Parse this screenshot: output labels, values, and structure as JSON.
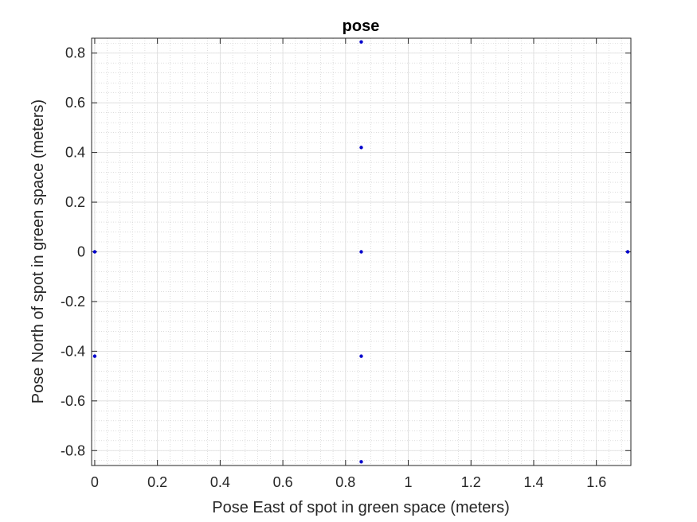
{
  "chart_data": {
    "type": "scatter",
    "title": "pose",
    "xlabel": "Pose East of spot in green space (meters)",
    "ylabel": "Pose North of spot in green space (meters)",
    "xlim": [
      -0.01,
      1.71
    ],
    "ylim": [
      -0.86,
      0.86
    ],
    "xticks": [
      0,
      0.2,
      0.4,
      0.6,
      0.8,
      1,
      1.2,
      1.4,
      1.6
    ],
    "xtick_labels": [
      "0",
      "0.2",
      "0.4",
      "0.6",
      "0.8",
      "1",
      "1.2",
      "1.4",
      "1.6"
    ],
    "yticks": [
      -0.8,
      -0.6,
      -0.4,
      -0.2,
      0,
      0.2,
      0.4,
      0.6,
      0.8
    ],
    "ytick_labels": [
      "-0.8",
      "-0.6",
      "-0.4",
      "-0.2",
      "0",
      "0.2",
      "0.4",
      "0.6",
      "0.8"
    ],
    "grid": true,
    "minor_grid": true,
    "series": [
      {
        "color": "#0000cc",
        "marker": "dot",
        "points": [
          {
            "x": 0.0,
            "y": 0.0
          },
          {
            "x": 0.0,
            "y": -0.42
          },
          {
            "x": 0.85,
            "y": 0.845
          },
          {
            "x": 0.85,
            "y": 0.42
          },
          {
            "x": 0.85,
            "y": 0.0
          },
          {
            "x": 0.85,
            "y": -0.42
          },
          {
            "x": 0.85,
            "y": -0.845
          },
          {
            "x": 1.7,
            "y": 0.0
          }
        ]
      }
    ]
  }
}
